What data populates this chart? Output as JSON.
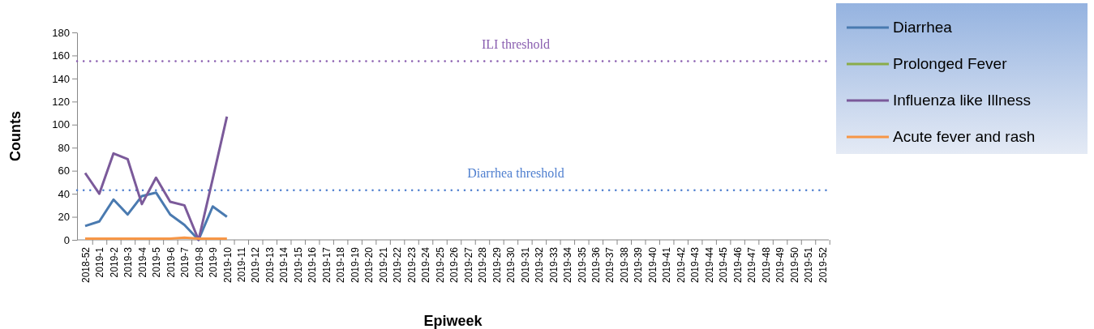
{
  "chart_data": {
    "type": "line",
    "xlabel": "Epiweek",
    "ylabel": "Counts",
    "categories": [
      "2018-52",
      "2019-1",
      "2019-2",
      "2019-3",
      "2019-4",
      "2019-5",
      "2019-6",
      "2019-7",
      "2019-8",
      "2019-9",
      "2019-10",
      "2019-11",
      "2019-12",
      "2019-13",
      "2019-14",
      "2019-15",
      "2019-16",
      "2019-17",
      "2019-18",
      "2019-19",
      "2019-20",
      "2019-21",
      "2019-22",
      "2019-23",
      "2019-24",
      "2019-25",
      "2019-26",
      "2019-27",
      "2019-28",
      "2019-29",
      "2019-30",
      "2019-31",
      "2019-32",
      "2019-33",
      "2019-34",
      "2019-35",
      "2019-36",
      "2019-37",
      "2019-38",
      "2019-39",
      "2019-40",
      "2019-41",
      "2019-42",
      "2019-43",
      "2019-44",
      "2019-45",
      "2019-46",
      "2019-47",
      "2019-48",
      "2019-49",
      "2019-50",
      "2019-51",
      "2019-52"
    ],
    "series": [
      {
        "name": "Diarrhea",
        "color": "#4a7ab0",
        "values": [
          12,
          16,
          35,
          22,
          38,
          41,
          22,
          13,
          0,
          29,
          20,
          null,
          null,
          null,
          null,
          null,
          null,
          null,
          null,
          null,
          null,
          null,
          null,
          null,
          null,
          null,
          null,
          null,
          null,
          null,
          null,
          null,
          null,
          null,
          null,
          null,
          null,
          null,
          null,
          null,
          null,
          null,
          null,
          null,
          null,
          null,
          null,
          null,
          null,
          null,
          null,
          null,
          null
        ]
      },
      {
        "name": "Prolonged Fever",
        "color": "#8aac4a",
        "values": [
          null,
          null,
          null,
          null,
          null,
          null,
          null,
          null,
          null,
          null,
          null,
          null,
          null,
          null,
          null,
          null,
          null,
          null,
          null,
          null,
          null,
          null,
          null,
          null,
          null,
          null,
          null,
          null,
          null,
          null,
          null,
          null,
          null,
          null,
          null,
          null,
          null,
          null,
          null,
          null,
          null,
          null,
          null,
          null,
          null,
          null,
          null,
          null,
          null,
          null,
          null,
          null,
          null
        ]
      },
      {
        "name": "Influenza like Illness",
        "color": "#7b5a9a",
        "values": [
          58,
          40,
          75,
          70,
          31,
          54,
          33,
          30,
          0,
          53,
          107,
          null,
          null,
          null,
          null,
          null,
          null,
          null,
          null,
          null,
          null,
          null,
          null,
          null,
          null,
          null,
          null,
          null,
          null,
          null,
          null,
          null,
          null,
          null,
          null,
          null,
          null,
          null,
          null,
          null,
          null,
          null,
          null,
          null,
          null,
          null,
          null,
          null,
          null,
          null,
          null,
          null,
          null
        ]
      },
      {
        "name": "Acute fever and rash",
        "color": "#f79646",
        "values": [
          1,
          1,
          1,
          1,
          1,
          1,
          1,
          2,
          1,
          1,
          1,
          null,
          null,
          null,
          null,
          null,
          null,
          null,
          null,
          null,
          null,
          null,
          null,
          null,
          null,
          null,
          null,
          null,
          null,
          null,
          null,
          null,
          null,
          null,
          null,
          null,
          null,
          null,
          null,
          null,
          null,
          null,
          null,
          null,
          null,
          null,
          null,
          null,
          null,
          null,
          null,
          null,
          null
        ]
      }
    ],
    "ylim": [
      0,
      180
    ],
    "yticks": [
      0,
      20,
      40,
      60,
      80,
      100,
      120,
      140,
      160,
      180
    ],
    "ref_lines": [
      {
        "axis": "y",
        "value": 155,
        "label": "ILI threshold",
        "color": "#8a5fb0",
        "line_style": "dotted"
      },
      {
        "axis": "y",
        "value": 43,
        "label": "Diarrhea threshold",
        "color": "#4f7fcf",
        "line_style": "dotted"
      }
    ],
    "legend": "top right",
    "marker": "none",
    "line_style": "solid",
    "grid": false
  }
}
